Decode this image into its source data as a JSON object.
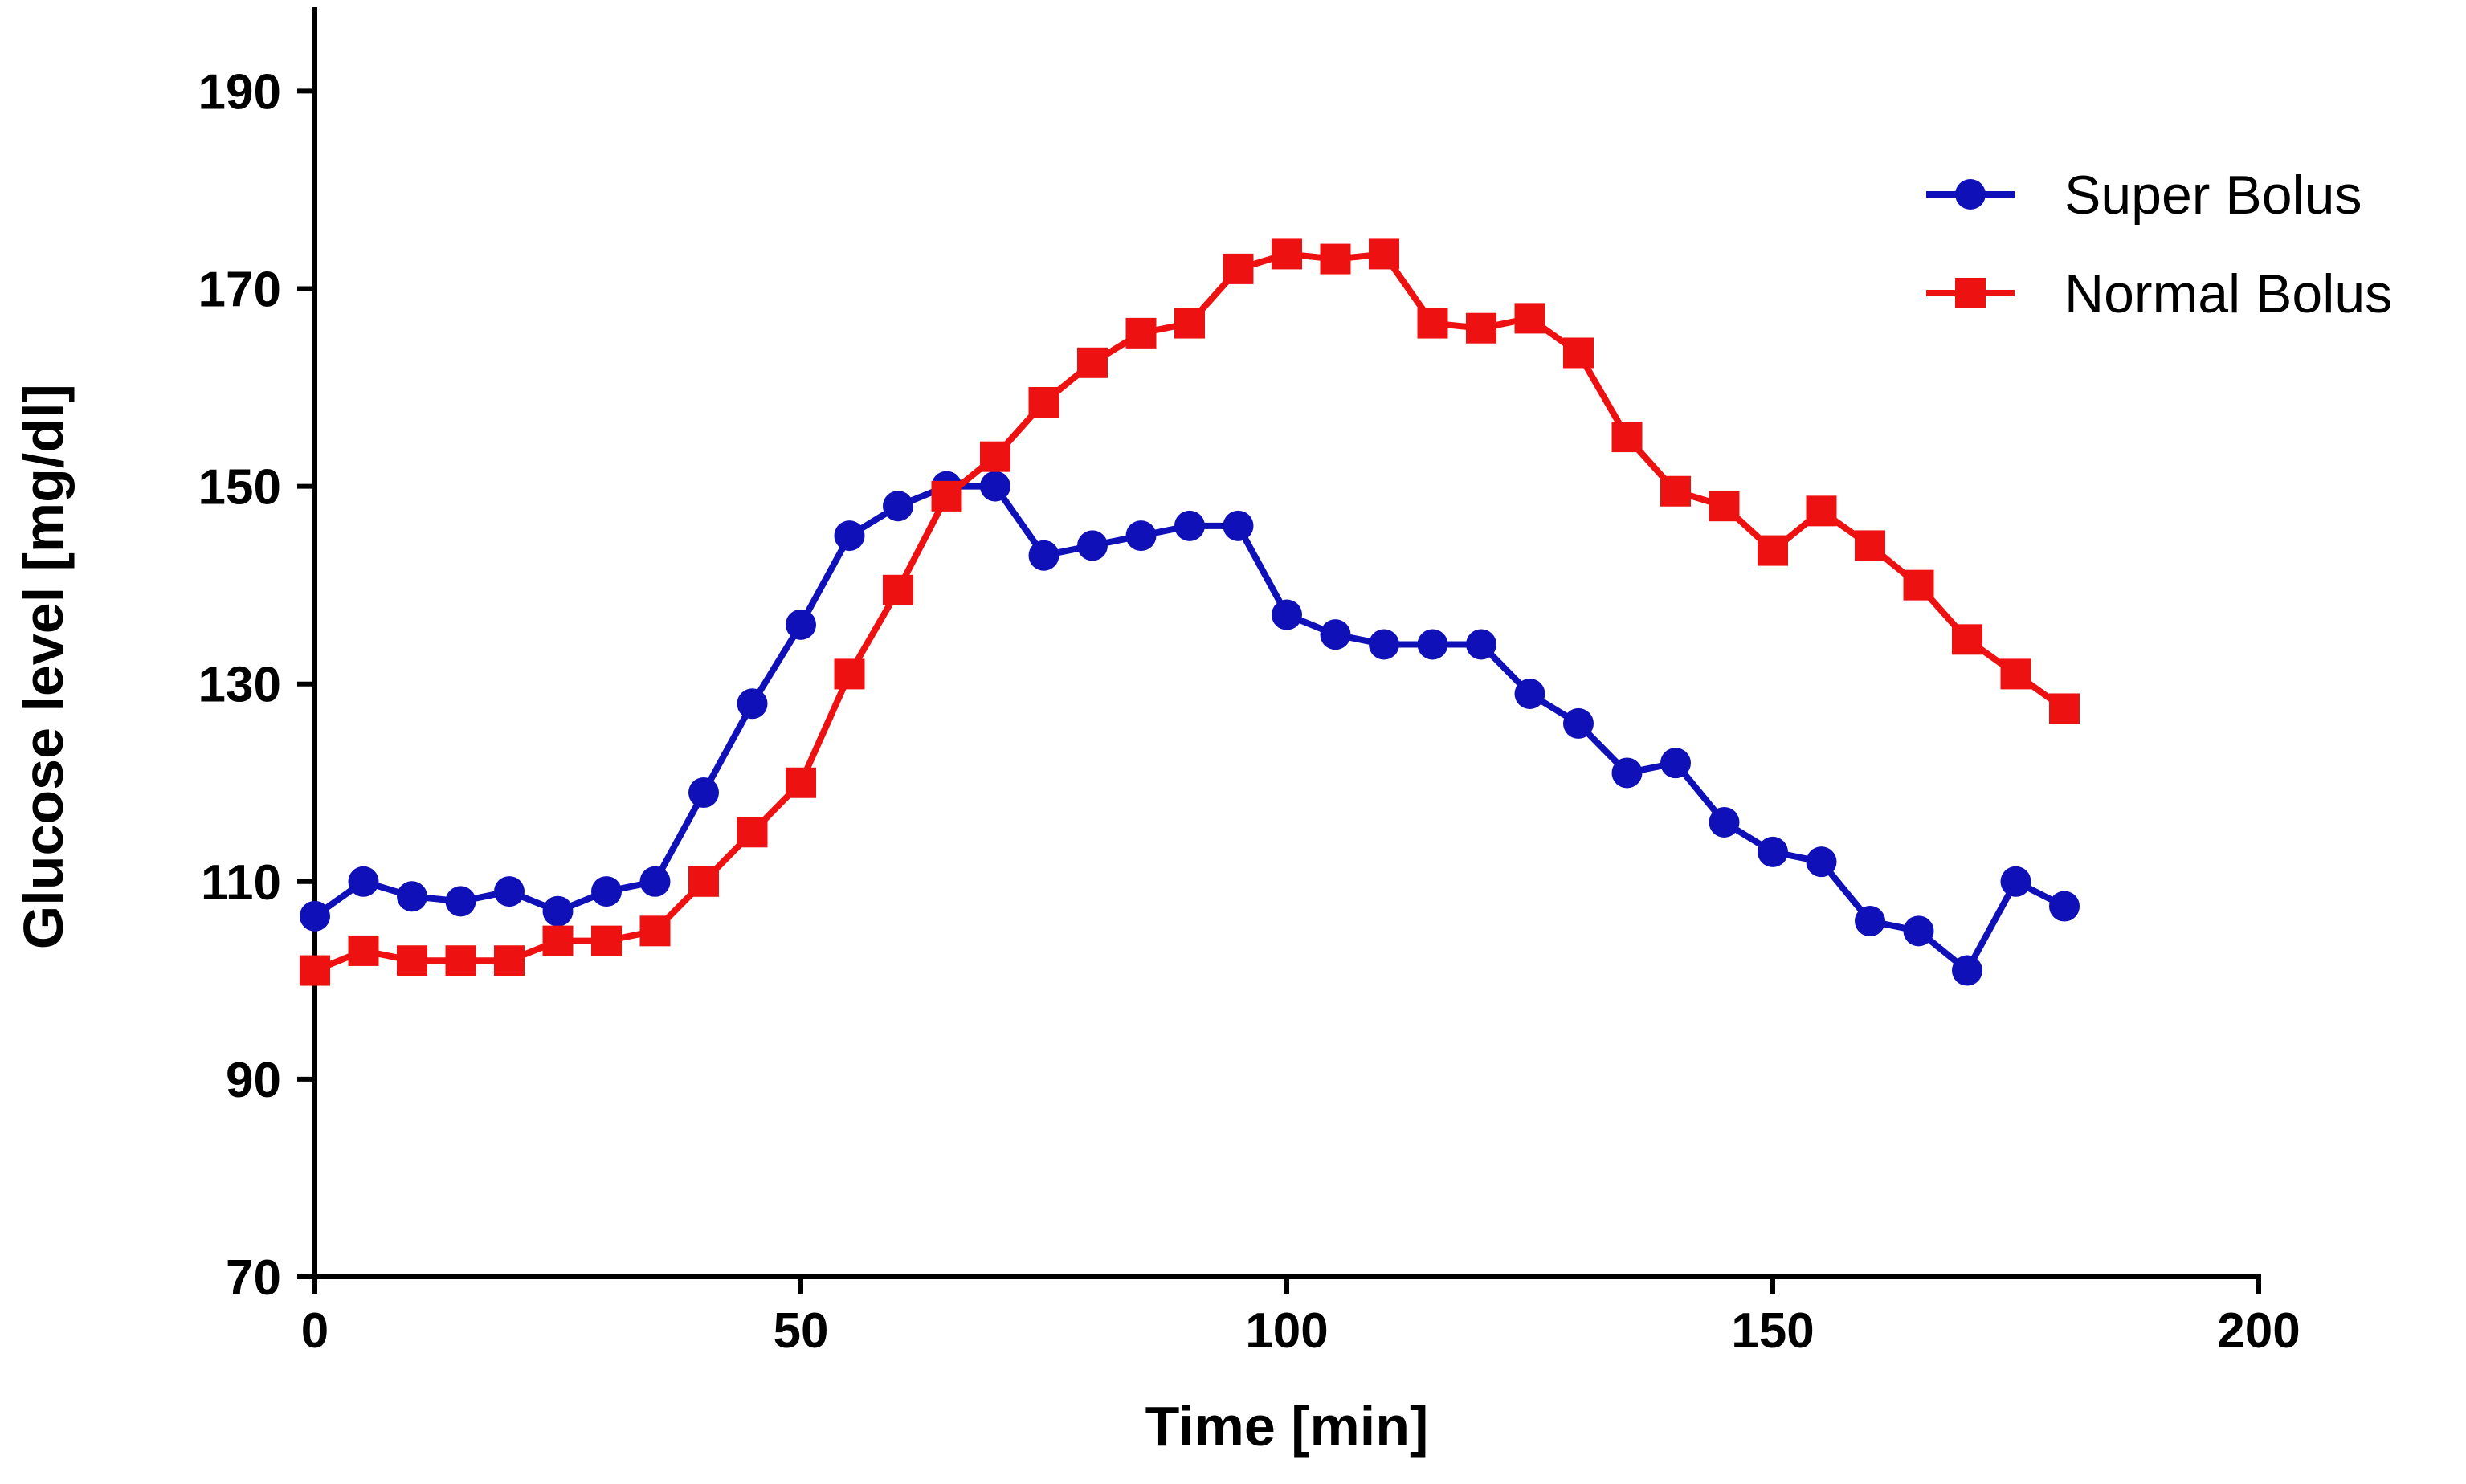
{
  "chart_data": {
    "type": "line",
    "title": "",
    "xlabel": "Time [min]",
    "ylabel": "Glucose level [mg/dl]",
    "xlim": [
      0,
      200
    ],
    "ylim": [
      70,
      200
    ],
    "xticks": [
      0,
      50,
      100,
      150,
      200
    ],
    "yticks": [
      70,
      90,
      110,
      130,
      150,
      170,
      190
    ],
    "x_tick_labels": [
      "0",
      "50",
      "100",
      "150",
      "200"
    ],
    "y_tick_labels": [
      "70",
      "90",
      "110",
      "130",
      "150",
      "170",
      "190"
    ],
    "grid": false,
    "legend_position": "top-right",
    "x": [
      0,
      5,
      10,
      15,
      20,
      25,
      30,
      35,
      40,
      45,
      50,
      55,
      60,
      65,
      70,
      75,
      80,
      85,
      90,
      95,
      100,
      105,
      110,
      115,
      120,
      125,
      130,
      135,
      140,
      145,
      150,
      155,
      160,
      165,
      170,
      175,
      180
    ],
    "series": [
      {
        "name": "Super Bolus",
        "color": "#1010b8",
        "marker": "circle",
        "values": [
          106.5,
          110,
          108.5,
          108,
          109,
          107,
          109,
          110,
          119,
          128,
          136,
          145,
          148,
          150,
          150,
          143,
          144,
          145,
          146,
          146,
          137,
          135,
          134,
          134,
          134,
          129,
          126,
          121,
          122,
          116,
          113,
          112,
          106,
          105,
          101,
          110,
          107.5
        ]
      },
      {
        "name": "Normal Bolus",
        "color": "#ee1111",
        "marker": "square",
        "values": [
          101,
          103,
          102,
          102,
          102,
          104,
          104,
          105,
          110,
          115,
          120,
          131,
          139.5,
          149,
          153,
          158.5,
          162.5,
          165.5,
          166.5,
          172,
          173.5,
          173,
          173.5,
          166.5,
          166,
          167,
          163.5,
          155,
          149.5,
          148,
          143.5,
          147.5,
          144,
          140,
          134.5,
          131,
          127.5
        ]
      }
    ]
  }
}
